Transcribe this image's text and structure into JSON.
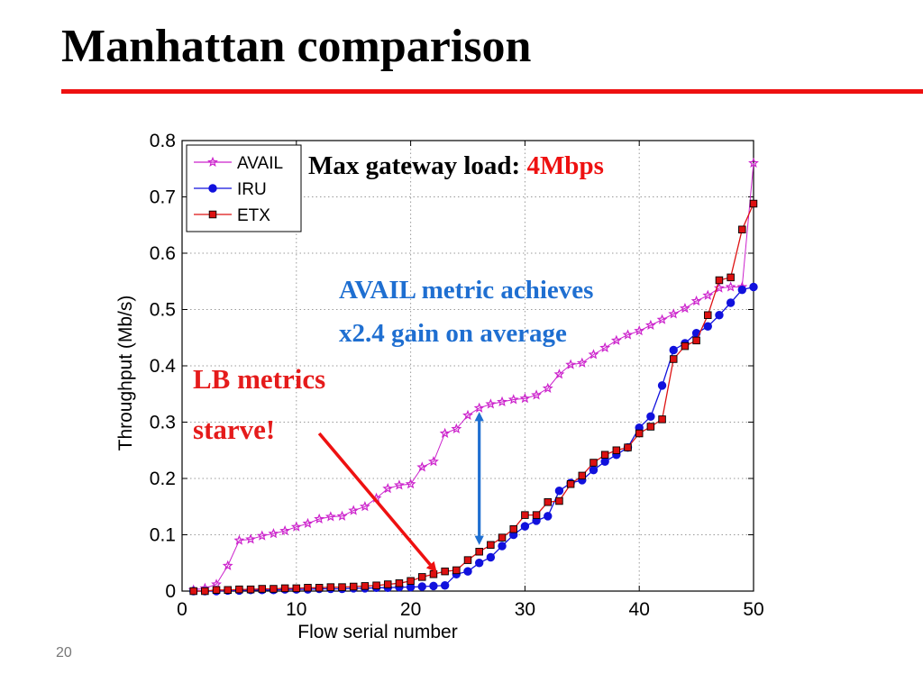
{
  "slide": {
    "title": "Manhattan comparison",
    "page_number": "20",
    "annotations": {
      "max_load_prefix": "Max gateway load: ",
      "max_load_value": "4Mbps",
      "avail_gain_line1": "AVAIL metric achieves",
      "avail_gain_line2": "x2.4 gain on average",
      "lb_line1": "LB metrics",
      "lb_line2": "starve!"
    },
    "colors": {
      "title_rule": "#ee1111",
      "avail": "#cc22cc",
      "iru": "#1111dd",
      "etx": "#dd1111",
      "gain_arrow": "#1f6fd1",
      "starve_arrow": "#ee1111"
    }
  },
  "chart_data": {
    "type": "line",
    "title": "",
    "xlabel": "Flow serial number",
    "ylabel": "Throughput (Mb/s)",
    "xlim": [
      0,
      50
    ],
    "ylim": [
      0,
      0.8
    ],
    "grid": true,
    "legend_position": "top-left",
    "xticks": [
      0,
      10,
      20,
      30,
      40,
      50
    ],
    "xtick_labels": [
      "0",
      "10",
      "20",
      "30",
      "40",
      "50"
    ],
    "yticks": [
      0,
      0.1,
      0.2,
      0.3,
      0.4,
      0.5,
      0.6,
      0.7,
      0.8
    ],
    "ytick_labels": [
      "0",
      "0.1",
      "0.2",
      "0.3",
      "0.4",
      "0.5",
      "0.6",
      "0.7",
      "0.8"
    ],
    "x": [
      1,
      2,
      3,
      4,
      5,
      6,
      7,
      8,
      9,
      10,
      11,
      12,
      13,
      14,
      15,
      16,
      17,
      18,
      19,
      20,
      21,
      22,
      23,
      24,
      25,
      26,
      27,
      28,
      29,
      30,
      31,
      32,
      33,
      34,
      35,
      36,
      37,
      38,
      39,
      40,
      41,
      42,
      43,
      44,
      45,
      46,
      47,
      48,
      49,
      50
    ],
    "series": [
      {
        "name": "AVAIL",
        "marker": "star",
        "color": "#cc22cc",
        "values": [
          0.002,
          0.005,
          0.012,
          0.045,
          0.09,
          0.092,
          0.098,
          0.102,
          0.107,
          0.114,
          0.12,
          0.128,
          0.132,
          0.133,
          0.143,
          0.15,
          0.165,
          0.182,
          0.188,
          0.19,
          0.22,
          0.23,
          0.28,
          0.288,
          0.312,
          0.325,
          0.332,
          0.336,
          0.34,
          0.342,
          0.348,
          0.36,
          0.385,
          0.402,
          0.405,
          0.42,
          0.432,
          0.445,
          0.455,
          0.462,
          0.472,
          0.482,
          0.492,
          0.502,
          0.515,
          0.525,
          0.538,
          0.54,
          0.54,
          0.76
        ]
      },
      {
        "name": "IRU",
        "marker": "circle",
        "color": "#1111dd",
        "values": [
          0.0,
          0.0,
          0.0,
          0.001,
          0.001,
          0.002,
          0.002,
          0.002,
          0.003,
          0.003,
          0.003,
          0.004,
          0.004,
          0.004,
          0.005,
          0.005,
          0.006,
          0.006,
          0.007,
          0.007,
          0.008,
          0.009,
          0.01,
          0.03,
          0.035,
          0.05,
          0.06,
          0.08,
          0.1,
          0.115,
          0.125,
          0.133,
          0.178,
          0.192,
          0.197,
          0.215,
          0.23,
          0.242,
          0.255,
          0.29,
          0.31,
          0.365,
          0.428,
          0.44,
          0.458,
          0.47,
          0.49,
          0.512,
          0.535,
          0.54
        ]
      },
      {
        "name": "ETX",
        "marker": "square",
        "color": "#dd1111",
        "values": [
          0.0,
          0.0,
          0.002,
          0.002,
          0.003,
          0.003,
          0.004,
          0.004,
          0.005,
          0.005,
          0.006,
          0.006,
          0.007,
          0.007,
          0.008,
          0.009,
          0.01,
          0.012,
          0.014,
          0.018,
          0.025,
          0.03,
          0.035,
          0.037,
          0.055,
          0.07,
          0.082,
          0.095,
          0.11,
          0.135,
          0.135,
          0.158,
          0.16,
          0.19,
          0.205,
          0.228,
          0.242,
          0.25,
          0.255,
          0.28,
          0.292,
          0.305,
          0.412,
          0.435,
          0.445,
          0.49,
          0.552,
          0.557,
          0.642,
          0.688
        ]
      }
    ],
    "annotations": [
      {
        "type": "double-arrow",
        "x": 26,
        "y_from": 0.09,
        "y_to": 0.31
      },
      {
        "type": "arrow",
        "from": [
          12,
          0.28
        ],
        "to": [
          22,
          0.04
        ]
      }
    ]
  }
}
